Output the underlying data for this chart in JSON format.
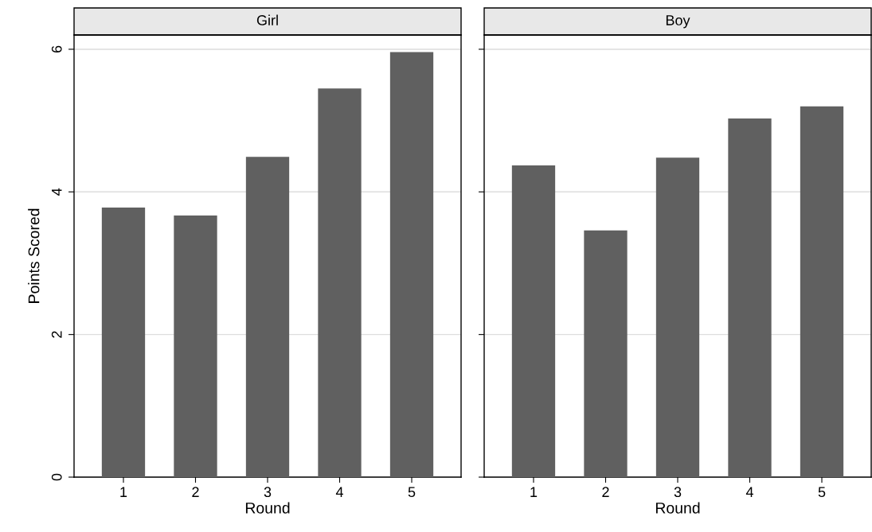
{
  "chart_data": [
    {
      "type": "bar",
      "title": "Girl",
      "xlabel": "Round",
      "ylabel": "Points Scored",
      "categories": [
        "1",
        "2",
        "3",
        "4",
        "5"
      ],
      "values": [
        3.78,
        3.67,
        4.49,
        5.45,
        5.96
      ],
      "color": "#606060",
      "ylim": [
        0,
        6.2
      ],
      "yticks": [
        0,
        2,
        4,
        6
      ],
      "grid": "y"
    },
    {
      "type": "bar",
      "title": "Boy",
      "xlabel": "Round",
      "categories": [
        "1",
        "2",
        "3",
        "4",
        "5"
      ],
      "values": [
        4.37,
        3.46,
        4.48,
        5.03,
        5.2
      ],
      "color": "#606060",
      "ylim": [
        0,
        6.2
      ],
      "yticks": [
        0,
        2,
        4,
        6
      ],
      "grid": "y",
      "tick_labels": "x"
    }
  ]
}
